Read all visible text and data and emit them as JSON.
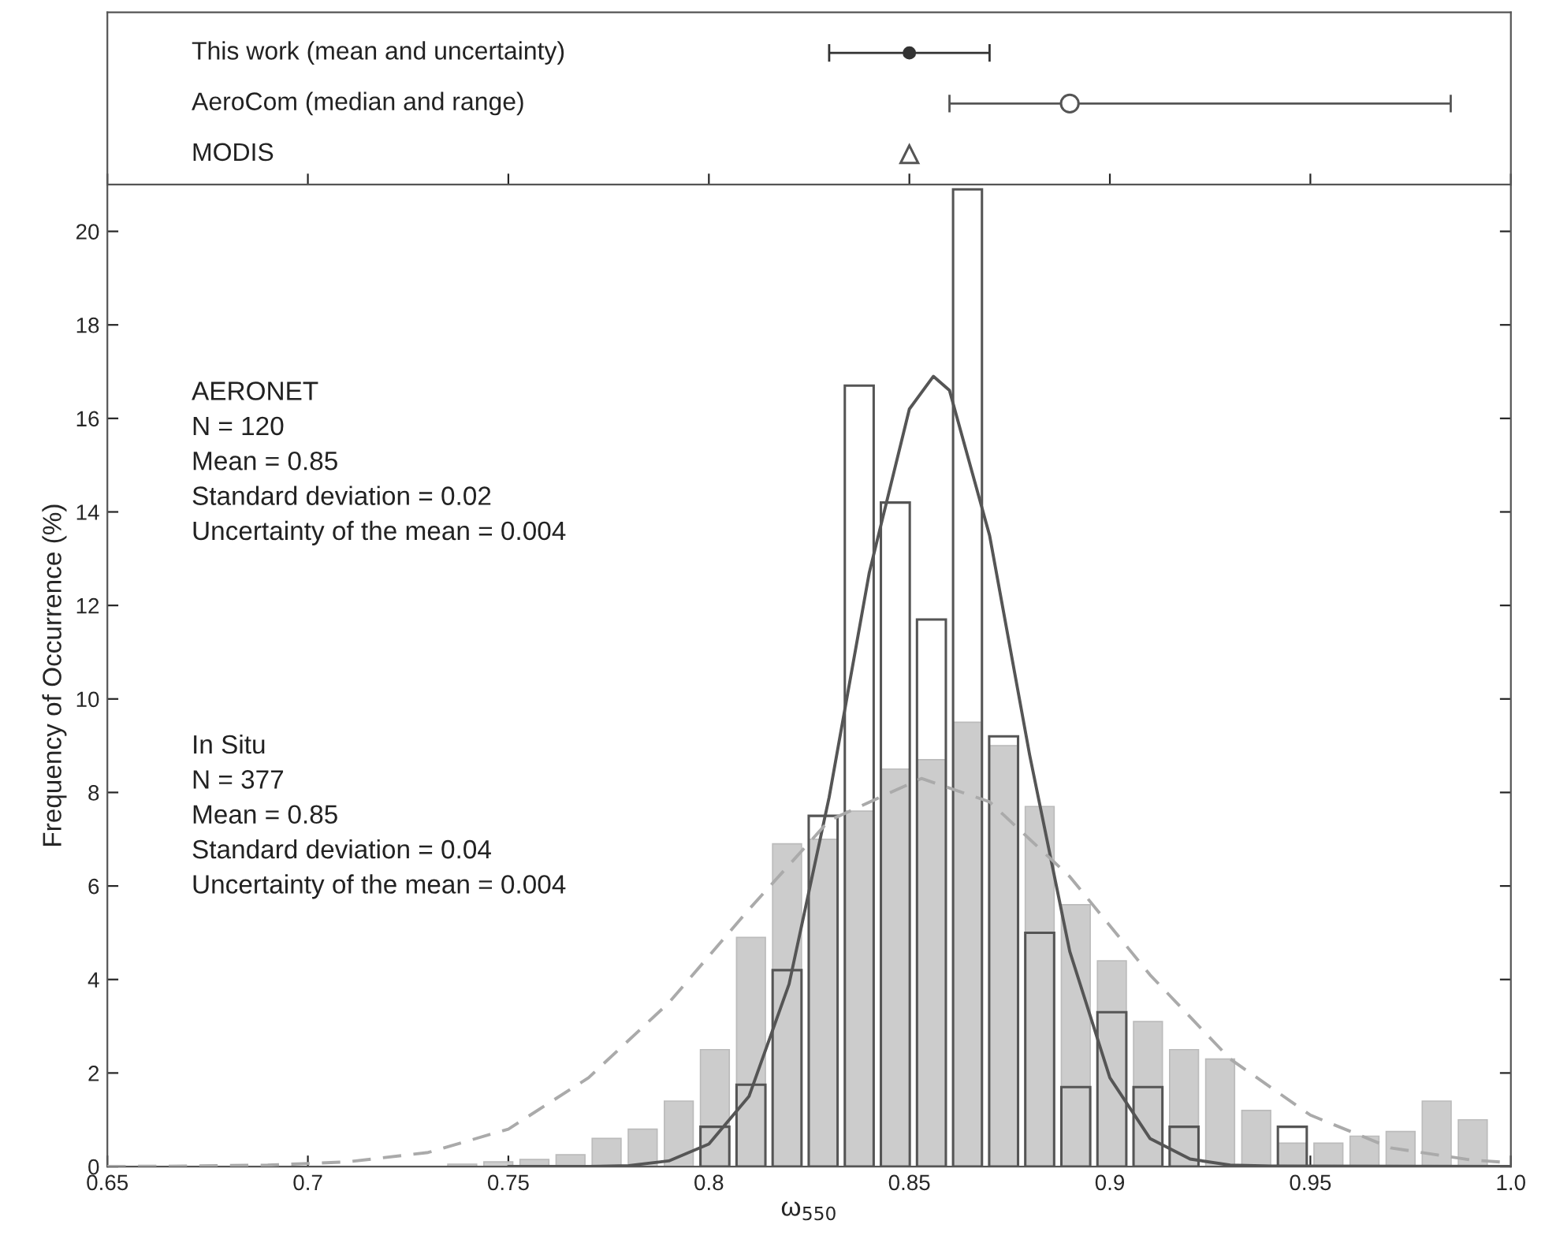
{
  "chart_data": [
    {
      "type": "scatter",
      "orientation": "horizontal",
      "categories": [
        "This work (mean and uncertainty)",
        "AeroCom (median and range)",
        "MODIS"
      ],
      "xlim": [
        0.65,
        1.0
      ],
      "xticks": [
        {
          "value": 0.65,
          "label": null
        },
        {
          "value": 0.7,
          "label": null
        },
        {
          "value": 0.75,
          "label": null
        },
        {
          "value": 0.8,
          "label": null
        },
        {
          "value": 0.85,
          "label": null
        },
        {
          "value": 0.9,
          "label": null
        },
        {
          "value": 0.95,
          "label": null
        },
        {
          "value": 1.0,
          "label": null
        }
      ],
      "tick_labels": false,
      "grid": false,
      "legend": false,
      "series": [
        {
          "color": "#333333",
          "marker": "circle",
          "values": [
            0.85,
            null,
            null
          ],
          "errors": [
            0.02,
            null,
            null
          ]
        },
        {
          "color": "#555555",
          "marker": "circle",
          "values": [
            null,
            0.89,
            null
          ],
          "errors": [
            null,
            [
              0.86,
              0.985
            ],
            null
          ]
        },
        {
          "color": "#555555",
          "marker": "triangle",
          "values": [
            null,
            null,
            0.85
          ],
          "errors": [
            null,
            null,
            null
          ]
        }
      ]
    },
    {
      "type": "histogram",
      "xlabel": "ω$_{550}$",
      "ylabel": "Frequency of Occurrence (%)",
      "xlim": [
        0.65,
        1.0
      ],
      "ylim": [
        0,
        21
      ],
      "xticks": [
        0.65,
        0.7,
        0.75,
        0.8,
        0.85,
        0.9,
        0.95,
        {
          "value": 1.0,
          "label": "1.0"
        }
      ],
      "yticks": [
        0,
        2,
        4,
        6,
        8,
        10,
        12,
        14,
        16,
        18,
        20
      ],
      "grid": false,
      "legend": false,
      "bins": [
        0.734,
        0.743,
        0.752,
        0.761,
        0.77,
        0.779,
        0.788,
        0.797,
        0.806,
        0.815,
        0.824,
        0.833,
        0.842,
        0.851,
        0.86,
        0.869,
        0.878,
        0.887,
        0.896,
        0.905,
        0.914,
        0.923,
        0.932,
        0.941,
        0.95,
        0.959,
        0.968,
        0.977,
        0.986,
        0.995
      ],
      "series": [
        {
          "type": "histogram",
          "color": "#cccccc",
          "values": [
            0.05,
            0.1,
            0.15,
            0.25,
            0.6,
            0.8,
            1.4,
            2.5,
            4.9,
            6.9,
            7.0,
            7.6,
            8.5,
            8.7,
            9.5,
            9.0,
            7.7,
            5.6,
            4.4,
            3.1,
            2.5,
            2.3,
            1.2,
            0.5,
            0.5,
            0.65,
            0.75,
            1.4,
            1.0
          ]
        },
        {
          "type": "histogram",
          "color": "#555555",
          "values": [
            null,
            null,
            null,
            null,
            null,
            null,
            null,
            0.85,
            1.75,
            4.2,
            7.5,
            16.7,
            14.2,
            11.7,
            20.9,
            9.2,
            5.0,
            1.7,
            3.3,
            1.7,
            0.85,
            null,
            null,
            0.85,
            null,
            null,
            null,
            null,
            null
          ]
        },
        {
          "type": "line",
          "line_style": "solid",
          "color": "#555555",
          "x": [
            0.75,
            0.77,
            0.78,
            0.79,
            0.8,
            0.81,
            0.82,
            0.83,
            0.84,
            0.85,
            0.856,
            0.86,
            0.87,
            0.88,
            0.89,
            0.9,
            0.91,
            0.92,
            0.93,
            0.94,
            1.0
          ],
          "values": [
            0,
            0,
            0.02,
            0.12,
            0.48,
            1.5,
            3.9,
            7.9,
            12.7,
            16.2,
            16.9,
            16.6,
            13.5,
            8.8,
            4.6,
            1.9,
            0.6,
            0.16,
            0.03,
            0.01,
            0
          ]
        },
        {
          "type": "line",
          "line_style": "dashed",
          "color": "#aaaaaa",
          "x": [
            0.65,
            0.67,
            0.69,
            0.71,
            0.73,
            0.75,
            0.77,
            0.79,
            0.81,
            0.83,
            0.853,
            0.87,
            0.89,
            0.91,
            0.93,
            0.95,
            0.97,
            0.99,
            1.0
          ],
          "values": [
            0.0,
            0.01,
            0.03,
            0.1,
            0.3,
            0.8,
            1.9,
            3.5,
            5.5,
            7.4,
            8.3,
            7.8,
            6.2,
            4.1,
            2.3,
            1.1,
            0.4,
            0.14,
            0.08
          ]
        }
      ],
      "annotations": [
        "AERONET\nN = 120\nMean = 0.85\nStandard deviation = 0.02\nUncertainty of the mean = 0.004",
        "In Situ\nN = 377\nMean = 0.85\nStandard deviation = 0.04\nUncertainty of the mean = 0.004"
      ]
    }
  ]
}
